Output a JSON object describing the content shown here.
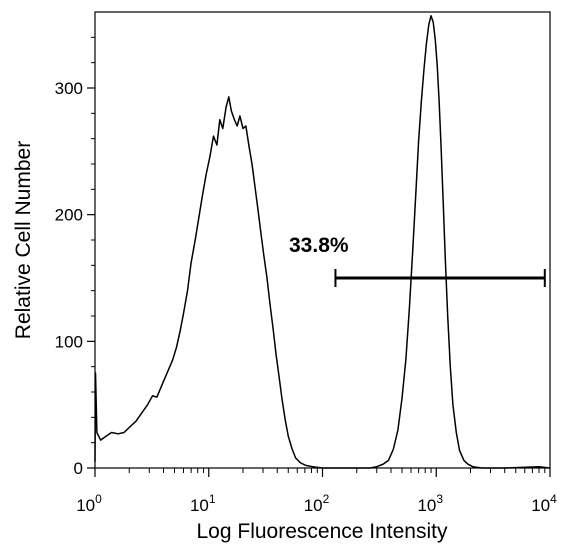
{
  "chart_data": {
    "type": "histogram",
    "xlabel": "Log Fluorescence Intensity",
    "ylabel": "Relative Cell Number",
    "xscale": "log",
    "xlim": [
      1,
      10000
    ],
    "ylim": [
      0,
      360
    ],
    "x_ticks": [
      {
        "base": "10",
        "exp": "0"
      },
      {
        "base": "10",
        "exp": "1"
      },
      {
        "base": "10",
        "exp": "2"
      },
      {
        "base": "10",
        "exp": "3"
      },
      {
        "base": "10",
        "exp": "4"
      }
    ],
    "y_ticks": [
      "0",
      "100",
      "200",
      "300"
    ],
    "gate": {
      "label": "33.8%",
      "x_start": 130,
      "x_end": 9000,
      "y": 150
    },
    "histogram": [
      [
        1.0,
        5
      ],
      [
        1.01,
        75
      ],
      [
        1.04,
        28
      ],
      [
        1.12,
        22
      ],
      [
        1.25,
        25
      ],
      [
        1.4,
        28
      ],
      [
        1.6,
        27
      ],
      [
        1.8,
        28
      ],
      [
        2.0,
        32
      ],
      [
        2.3,
        37
      ],
      [
        2.6,
        44
      ],
      [
        2.9,
        50
      ],
      [
        3.2,
        57
      ],
      [
        3.5,
        56
      ],
      [
        3.9,
        66
      ],
      [
        4.3,
        75
      ],
      [
        4.8,
        85
      ],
      [
        5.2,
        95
      ],
      [
        5.6,
        108
      ],
      [
        6.0,
        122
      ],
      [
        6.5,
        140
      ],
      [
        7.0,
        162
      ],
      [
        7.6,
        180
      ],
      [
        8.2,
        198
      ],
      [
        8.8,
        215
      ],
      [
        9.5,
        232
      ],
      [
        10.2,
        245
      ],
      [
        11.0,
        262
      ],
      [
        11.8,
        255
      ],
      [
        12.5,
        275
      ],
      [
        13.3,
        268
      ],
      [
        14.2,
        285
      ],
      [
        15.0,
        293
      ],
      [
        15.8,
        282
      ],
      [
        16.8,
        275
      ],
      [
        17.8,
        270
      ],
      [
        18.8,
        278
      ],
      [
        20.0,
        268
      ],
      [
        21.2,
        270
      ],
      [
        22.5,
        255
      ],
      [
        24.0,
        240
      ],
      [
        25.5,
        222
      ],
      [
        27.0,
        205
      ],
      [
        28.8,
        185
      ],
      [
        30.5,
        168
      ],
      [
        32.5,
        150
      ],
      [
        34.5,
        130
      ],
      [
        36.8,
        110
      ],
      [
        39.0,
        90
      ],
      [
        41.5,
        72
      ],
      [
        44.0,
        55
      ],
      [
        47.0,
        38
      ],
      [
        50.0,
        25
      ],
      [
        54.0,
        15
      ],
      [
        58.0,
        8
      ],
      [
        64.0,
        4
      ],
      [
        72.0,
        2
      ],
      [
        82.0,
        1
      ],
      [
        100.0,
        0
      ],
      [
        150.0,
        0
      ],
      [
        200.0,
        0
      ],
      [
        260.0,
        0
      ],
      [
        300.0,
        1
      ],
      [
        340.0,
        3
      ],
      [
        380.0,
        6
      ],
      [
        420.0,
        15
      ],
      [
        460.0,
        30
      ],
      [
        500.0,
        55
      ],
      [
        540.0,
        85
      ],
      [
        580.0,
        125
      ],
      [
        620.0,
        170
      ],
      [
        660.0,
        215
      ],
      [
        700.0,
        258
      ],
      [
        740.0,
        290
      ],
      [
        780.0,
        315
      ],
      [
        820.0,
        335
      ],
      [
        860.0,
        350
      ],
      [
        900.0,
        357
      ],
      [
        940.0,
        352
      ],
      [
        980.0,
        338
      ],
      [
        1020.0,
        318
      ],
      [
        1060.0,
        290
      ],
      [
        1100.0,
        255
      ],
      [
        1150.0,
        210
      ],
      [
        1200.0,
        165
      ],
      [
        1260.0,
        120
      ],
      [
        1330.0,
        80
      ],
      [
        1400.0,
        50
      ],
      [
        1500.0,
        28
      ],
      [
        1600.0,
        14
      ],
      [
        1750.0,
        6
      ],
      [
        1900.0,
        3
      ],
      [
        2100.0,
        1
      ],
      [
        2500.0,
        0
      ],
      [
        4000.0,
        0
      ],
      [
        8000.0,
        1
      ],
      [
        10000.0,
        0
      ]
    ]
  }
}
